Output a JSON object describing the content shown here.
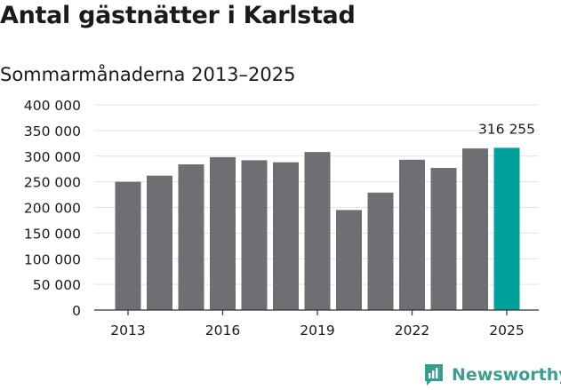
{
  "title": "Antal gästnätter i Karlstad",
  "subtitle": "Sommarmånaderna 2013–2025",
  "brand": {
    "name": "Newsworthy",
    "color": "#3d9c8e"
  },
  "colors": {
    "bar": "#6e6e73",
    "highlight": "#00a19a",
    "grid": "#e3e3e3",
    "axis": "#333333"
  },
  "chart_data": {
    "type": "bar",
    "title": "Antal gästnätter i Karlstad",
    "subtitle": "Sommarmånaderna 2013–2025",
    "xlabel": "",
    "ylabel": "",
    "categories": [
      "2013",
      "2014",
      "2015",
      "2016",
      "2017",
      "2018",
      "2019",
      "2020",
      "2021",
      "2022",
      "2023",
      "2024",
      "2025"
    ],
    "x_tick_labels": [
      "2013",
      "2016",
      "2019",
      "2022",
      "2025"
    ],
    "values": [
      250000,
      262000,
      284000,
      298000,
      292000,
      288000,
      308000,
      195000,
      229000,
      293000,
      277000,
      315000,
      316255
    ],
    "highlight_index": 12,
    "annotation": "316 255",
    "ylim": [
      0,
      400000
    ],
    "y_ticks": [
      0,
      50000,
      100000,
      150000,
      200000,
      250000,
      300000,
      350000,
      400000
    ],
    "y_tick_labels": [
      "0",
      "50 000",
      "100 000",
      "150 000",
      "200 000",
      "250 000",
      "300 000",
      "350 000",
      "400 000"
    ],
    "grid": true
  }
}
